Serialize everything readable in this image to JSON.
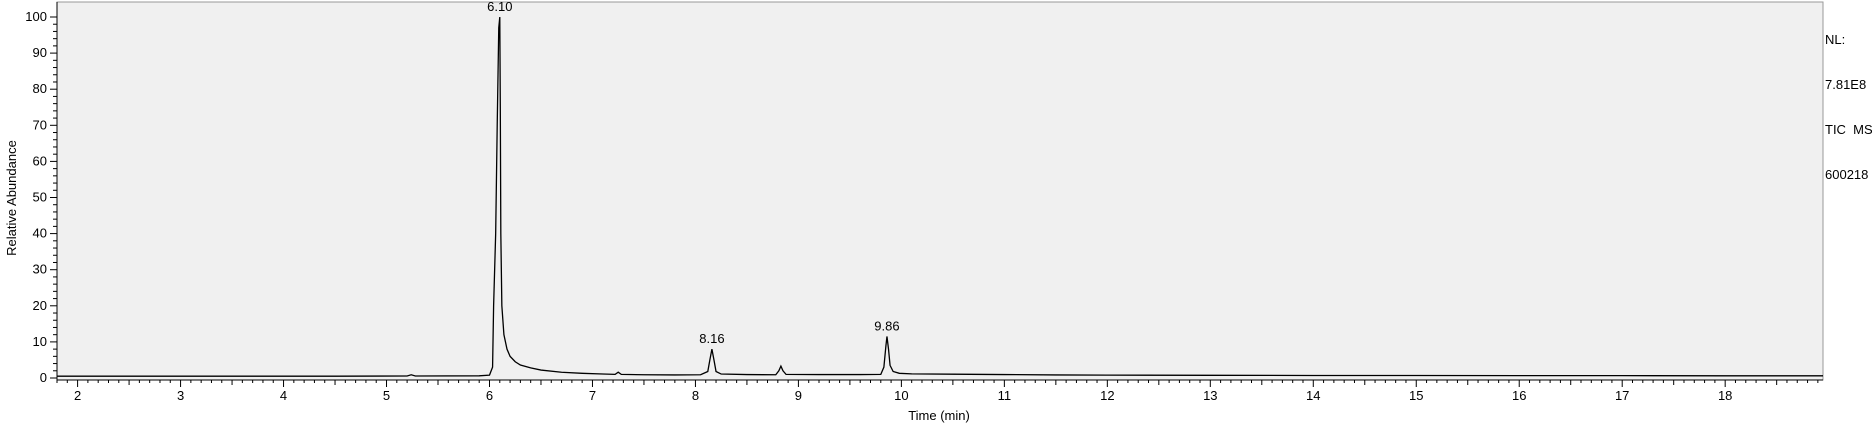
{
  "chart_data": {
    "type": "line",
    "title": "",
    "xlabel": "Time (min)",
    "ylabel": "Relative Abundance",
    "xlim": [
      1.8,
      18.95
    ],
    "ylim": [
      0,
      100
    ],
    "x_ticks": [
      2,
      3,
      4,
      5,
      6,
      7,
      8,
      9,
      10,
      11,
      12,
      13,
      14,
      15,
      16,
      17,
      18
    ],
    "y_ticks": [
      0,
      10,
      20,
      30,
      40,
      50,
      60,
      70,
      80,
      90,
      100
    ],
    "grid": false,
    "background": "#f0f0f0",
    "line_color": "#000000",
    "info_lines": [
      "NL:",
      "7.81E8",
      "TIC  MS",
      "600218"
    ],
    "peak_labels": [
      {
        "x": 6.1,
        "y": 100,
        "label": "6.10"
      },
      {
        "x": 8.16,
        "y": 8,
        "label": "8.16"
      },
      {
        "x": 9.86,
        "y": 11.5,
        "label": "9.86"
      }
    ],
    "series": [
      {
        "name": "TIC",
        "points": [
          [
            1.8,
            0.5
          ],
          [
            2.5,
            0.5
          ],
          [
            3.5,
            0.5
          ],
          [
            4.5,
            0.5
          ],
          [
            5.2,
            0.55
          ],
          [
            5.24,
            0.9
          ],
          [
            5.28,
            0.55
          ],
          [
            5.9,
            0.6
          ],
          [
            6.0,
            0.8
          ],
          [
            6.03,
            3
          ],
          [
            6.04,
            20
          ],
          [
            6.06,
            40
          ],
          [
            6.075,
            70
          ],
          [
            6.09,
            97
          ],
          [
            6.1,
            100
          ],
          [
            6.105,
            75
          ],
          [
            6.11,
            40
          ],
          [
            6.12,
            20
          ],
          [
            6.14,
            12
          ],
          [
            6.17,
            8
          ],
          [
            6.2,
            6
          ],
          [
            6.25,
            4.5
          ],
          [
            6.3,
            3.6
          ],
          [
            6.4,
            2.8
          ],
          [
            6.5,
            2.2
          ],
          [
            6.7,
            1.6
          ],
          [
            6.9,
            1.3
          ],
          [
            7.1,
            1.1
          ],
          [
            7.22,
            1.0
          ],
          [
            7.25,
            1.6
          ],
          [
            7.28,
            1.0
          ],
          [
            7.5,
            0.9
          ],
          [
            7.8,
            0.85
          ],
          [
            8.05,
            0.9
          ],
          [
            8.12,
            1.8
          ],
          [
            8.14,
            5
          ],
          [
            8.16,
            8
          ],
          [
            8.18,
            5
          ],
          [
            8.2,
            1.8
          ],
          [
            8.25,
            1.1
          ],
          [
            8.5,
            0.95
          ],
          [
            8.78,
            0.9
          ],
          [
            8.81,
            2
          ],
          [
            8.83,
            3.3
          ],
          [
            8.85,
            2
          ],
          [
            8.88,
            1.0
          ],
          [
            9.2,
            0.95
          ],
          [
            9.6,
            0.95
          ],
          [
            9.8,
            1.0
          ],
          [
            9.83,
            3
          ],
          [
            9.85,
            9
          ],
          [
            9.86,
            11.5
          ],
          [
            9.875,
            8
          ],
          [
            9.89,
            3.5
          ],
          [
            9.92,
            1.8
          ],
          [
            9.98,
            1.3
          ],
          [
            10.1,
            1.15
          ],
          [
            10.5,
            1.05
          ],
          [
            11.0,
            0.95
          ],
          [
            11.5,
            0.85
          ],
          [
            12.0,
            0.8
          ],
          [
            13.0,
            0.75
          ],
          [
            14.0,
            0.7
          ],
          [
            15.0,
            0.7
          ],
          [
            16.0,
            0.65
          ],
          [
            17.0,
            0.65
          ],
          [
            18.0,
            0.6
          ],
          [
            18.95,
            0.6
          ]
        ]
      }
    ]
  }
}
